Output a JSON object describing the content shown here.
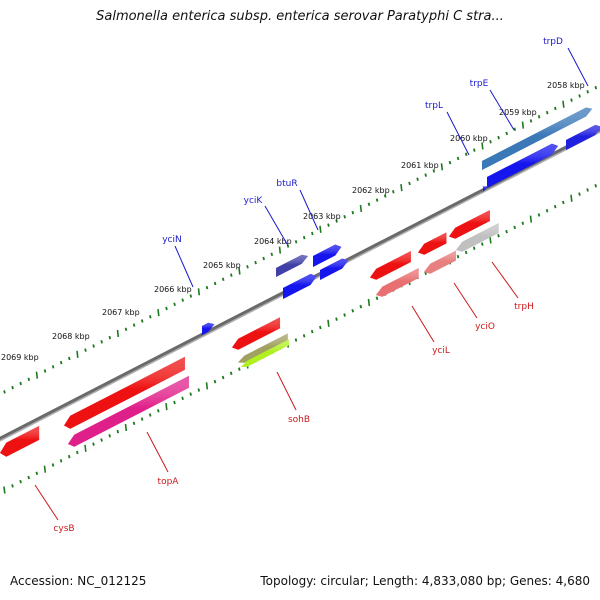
{
  "title": "Salmonella enterica subsp. enterica serovar Paratyphi C stra...",
  "footer": {
    "accession": "Accession: NC_012125",
    "summary": "Topology: circular; Length: 4,833,080 bp; Genes: 4,680"
  },
  "colors": {
    "backbone": "#808080",
    "forward_label": "#1a1acc",
    "reverse_label": "#cc1a1a",
    "tick": "#1e7a1e"
  },
  "scale": {
    "ticks": [
      {
        "label": "2058 kbp"
      },
      {
        "label": "2059 kbp"
      },
      {
        "label": "2060 kbp"
      },
      {
        "label": "2061 kbp"
      },
      {
        "label": "2062 kbp"
      },
      {
        "label": "2063 kbp"
      },
      {
        "label": "2064 kbp"
      },
      {
        "label": "2065 kbp"
      },
      {
        "label": "2066 kbp"
      },
      {
        "label": "2067 kbp"
      },
      {
        "label": "2068 kbp"
      },
      {
        "label": "2069 kbp"
      }
    ]
  },
  "genes": {
    "forward": [
      {
        "name": "trpD"
      },
      {
        "name": "trpE"
      },
      {
        "name": "trpL"
      },
      {
        "name": "btuR"
      },
      {
        "name": "yciK"
      },
      {
        "name": "yciN"
      }
    ],
    "reverse": [
      {
        "name": "cysB"
      },
      {
        "name": "topA"
      },
      {
        "name": "sohB"
      },
      {
        "name": "yciL"
      },
      {
        "name": "yciO"
      },
      {
        "name": "trpH"
      }
    ]
  }
}
